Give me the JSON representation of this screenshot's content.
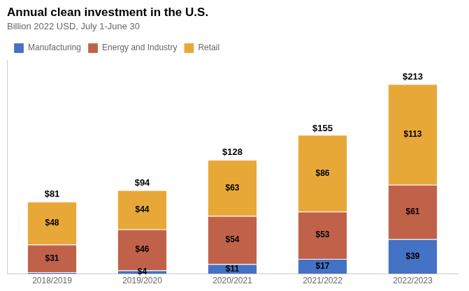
{
  "chart_data": {
    "type": "bar",
    "title": "Annual clean investment in the U.S.",
    "subtitle": "Billion 2022 USD, July 1-June 30",
    "categories": [
      "2018/2019",
      "2019/2020",
      "2020/2021",
      "2021/2022",
      "2022/2023"
    ],
    "series": [
      {
        "name": "Manufacturing",
        "color": "#4472C4",
        "values": [
          2,
          4,
          11,
          17,
          39
        ],
        "value_labels": [
          null,
          "$4",
          "$11",
          "$17",
          "$39"
        ]
      },
      {
        "name": "Energy and Industry",
        "color": "#C0624A",
        "values": [
          31,
          46,
          54,
          53,
          61
        ],
        "value_labels": [
          "$31",
          "$46",
          "$54",
          "$53",
          "$61"
        ]
      },
      {
        "name": "Retail",
        "color": "#E8A838",
        "values": [
          48,
          44,
          63,
          86,
          113
        ],
        "value_labels": [
          "$48",
          "$44",
          "$63",
          "$86",
          "$113"
        ]
      }
    ],
    "totals": [
      81,
      94,
      128,
      155,
      213
    ],
    "total_labels": [
      "$81",
      "$94",
      "$128",
      "$155",
      "$213"
    ],
    "stacked": true,
    "data_labels": true,
    "ylim": [
      0,
      240
    ],
    "yticks": [],
    "grid": false,
    "tick_labels": "x",
    "legend": "upper left"
  }
}
